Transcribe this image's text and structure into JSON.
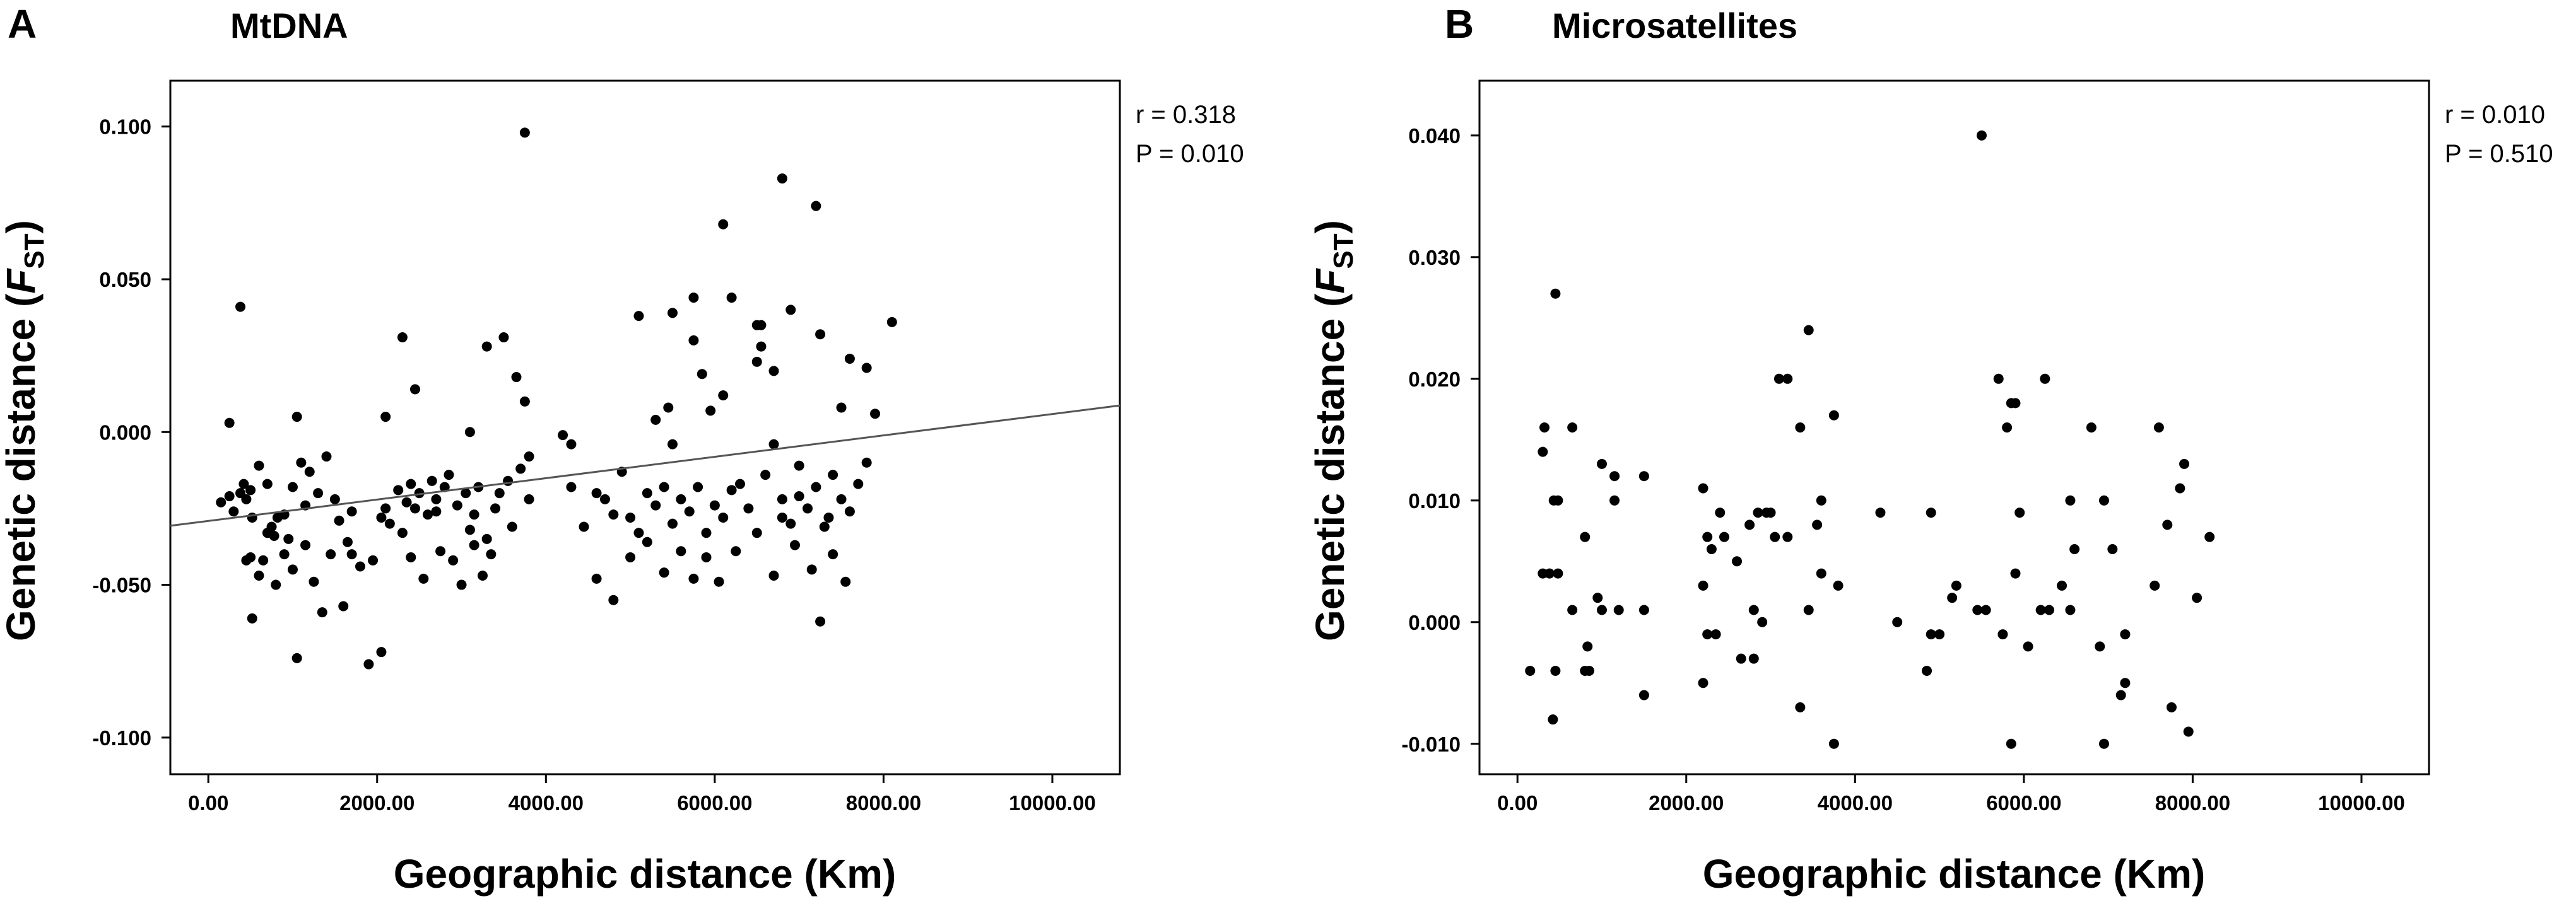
{
  "chart_data": [
    {
      "type": "scatter",
      "panel": "A",
      "title": "MtDNA",
      "xlabel": "Geographic distance (Km)",
      "ylabel_main": "Genetic distance (",
      "ylabel_var": "F",
      "ylabel_sub": "ST",
      "ylabel_close": ")",
      "stat_r": "r = 0.318",
      "stat_p": "P = 0.010",
      "xlim": [
        -450,
        10800
      ],
      "ylim": [
        -0.112,
        0.115
      ],
      "x_ticks": [
        0,
        2000,
        4000,
        6000,
        8000,
        10000
      ],
      "x_tick_labels": [
        "0.00",
        "2000.00",
        "4000.00",
        "6000.00",
        "8000.00",
        "10000.00"
      ],
      "y_ticks": [
        0.1,
        0.05,
        0.0,
        -0.05,
        -0.1
      ],
      "y_tick_labels": [
        "0.100",
        "0.050",
        "0.000",
        "-0.050",
        "-0.100"
      ],
      "regression": {
        "intercept": -0.0291,
        "slope": 3.5e-06
      },
      "points": [
        [
          380,
          0.041
        ],
        [
          3750,
          0.098
        ],
        [
          6800,
          0.083
        ],
        [
          7200,
          0.074
        ],
        [
          6100,
          0.068
        ],
        [
          2300,
          0.031
        ],
        [
          3500,
          0.031
        ],
        [
          3300,
          0.028
        ],
        [
          2450,
          0.014
        ],
        [
          3650,
          0.018
        ],
        [
          3750,
          0.01
        ],
        [
          1050,
          0.005
        ],
        [
          2100,
          0.005
        ],
        [
          250,
          0.003
        ],
        [
          3100,
          0.0
        ],
        [
          5100,
          0.038
        ],
        [
          5500,
          0.039
        ],
        [
          5750,
          0.044
        ],
        [
          6200,
          0.044
        ],
        [
          6500,
          0.035
        ],
        [
          6550,
          0.035
        ],
        [
          6900,
          0.04
        ],
        [
          7250,
          0.032
        ],
        [
          7600,
          0.024
        ],
        [
          7800,
          0.021
        ],
        [
          8100,
          0.036
        ],
        [
          5750,
          0.03
        ],
        [
          6550,
          0.028
        ],
        [
          6700,
          0.02
        ],
        [
          5850,
          0.019
        ],
        [
          5450,
          0.008
        ],
        [
          5950,
          0.007
        ],
        [
          6500,
          0.023
        ],
        [
          7500,
          0.008
        ],
        [
          7900,
          0.006
        ],
        [
          5300,
          0.004
        ],
        [
          6100,
          0.012
        ],
        [
          4200,
          -0.001
        ],
        [
          4300,
          -0.004
        ],
        [
          3800,
          -0.008
        ],
        [
          150,
          -0.023
        ],
        [
          250,
          -0.021
        ],
        [
          300,
          -0.026
        ],
        [
          380,
          -0.02
        ],
        [
          420,
          -0.017
        ],
        [
          450,
          -0.022
        ],
        [
          500,
          -0.019
        ],
        [
          520,
          -0.028
        ],
        [
          600,
          -0.011
        ],
        [
          700,
          -0.017
        ],
        [
          750,
          -0.031
        ],
        [
          780,
          -0.034
        ],
        [
          820,
          -0.028
        ],
        [
          900,
          -0.027
        ],
        [
          950,
          -0.035
        ],
        [
          1000,
          -0.018
        ],
        [
          1100,
          -0.01
        ],
        [
          1150,
          -0.024
        ],
        [
          1200,
          -0.013
        ],
        [
          1300,
          -0.02
        ],
        [
          1400,
          -0.008
        ],
        [
          1500,
          -0.022
        ],
        [
          1550,
          -0.029
        ],
        [
          1650,
          -0.036
        ],
        [
          1700,
          -0.026
        ],
        [
          450,
          -0.042
        ],
        [
          500,
          -0.041
        ],
        [
          600,
          -0.047
        ],
        [
          650,
          -0.042
        ],
        [
          700,
          -0.033
        ],
        [
          800,
          -0.05
        ],
        [
          900,
          -0.04
        ],
        [
          1000,
          -0.045
        ],
        [
          1150,
          -0.037
        ],
        [
          1250,
          -0.049
        ],
        [
          1350,
          -0.059
        ],
        [
          1450,
          -0.04
        ],
        [
          1600,
          -0.057
        ],
        [
          1700,
          -0.04
        ],
        [
          1800,
          -0.044
        ],
        [
          520,
          -0.061
        ],
        [
          1050,
          -0.074
        ],
        [
          1900,
          -0.076
        ],
        [
          2050,
          -0.072
        ],
        [
          1950,
          -0.042
        ],
        [
          2050,
          -0.028
        ],
        [
          2100,
          -0.025
        ],
        [
          2150,
          -0.03
        ],
        [
          2250,
          -0.019
        ],
        [
          2300,
          -0.033
        ],
        [
          2350,
          -0.023
        ],
        [
          2400,
          -0.017
        ],
        [
          2450,
          -0.025
        ],
        [
          2500,
          -0.02
        ],
        [
          2600,
          -0.027
        ],
        [
          2650,
          -0.016
        ],
        [
          2700,
          -0.022
        ],
        [
          2800,
          -0.018
        ],
        [
          2850,
          -0.014
        ],
        [
          2950,
          -0.024
        ],
        [
          3050,
          -0.02
        ],
        [
          3150,
          -0.027
        ],
        [
          3200,
          -0.018
        ],
        [
          3300,
          -0.035
        ],
        [
          3400,
          -0.025
        ],
        [
          3450,
          -0.02
        ],
        [
          3550,
          -0.016
        ],
        [
          3600,
          -0.031
        ],
        [
          3700,
          -0.012
        ],
        [
          3800,
          -0.022
        ],
        [
          2400,
          -0.041
        ],
        [
          2550,
          -0.048
        ],
        [
          2750,
          -0.039
        ],
        [
          2900,
          -0.042
        ],
        [
          3000,
          -0.05
        ],
        [
          3150,
          -0.037
        ],
        [
          3250,
          -0.047
        ],
        [
          3350,
          -0.04
        ],
        [
          2700,
          -0.026
        ],
        [
          3100,
          -0.032
        ],
        [
          4300,
          -0.018
        ],
        [
          4450,
          -0.031
        ],
        [
          4600,
          -0.02
        ],
        [
          4700,
          -0.022
        ],
        [
          4800,
          -0.027
        ],
        [
          4900,
          -0.013
        ],
        [
          5000,
          -0.028
        ],
        [
          5100,
          -0.033
        ],
        [
          5200,
          -0.02
        ],
        [
          5300,
          -0.024
        ],
        [
          5400,
          -0.018
        ],
        [
          5500,
          -0.03
        ],
        [
          5600,
          -0.022
        ],
        [
          5700,
          -0.026
        ],
        [
          5800,
          -0.018
        ],
        [
          5900,
          -0.033
        ],
        [
          6000,
          -0.024
        ],
        [
          6100,
          -0.028
        ],
        [
          6200,
          -0.019
        ],
        [
          6300,
          -0.017
        ],
        [
          6400,
          -0.025
        ],
        [
          6500,
          -0.033
        ],
        [
          6600,
          -0.014
        ],
        [
          6700,
          -0.004
        ],
        [
          6800,
          -0.022
        ],
        [
          6900,
          -0.03
        ],
        [
          7000,
          -0.021
        ],
        [
          7100,
          -0.025
        ],
        [
          7200,
          -0.018
        ],
        [
          7300,
          -0.031
        ],
        [
          7400,
          -0.014
        ],
        [
          7500,
          -0.022
        ],
        [
          7600,
          -0.026
        ],
        [
          7700,
          -0.017
        ],
        [
          7800,
          -0.01
        ],
        [
          4600,
          -0.048
        ],
        [
          4800,
          -0.055
        ],
        [
          5000,
          -0.041
        ],
        [
          5200,
          -0.036
        ],
        [
          5400,
          -0.046
        ],
        [
          5600,
          -0.039
        ],
        [
          5750,
          -0.048
        ],
        [
          5900,
          -0.041
        ],
        [
          6050,
          -0.049
        ],
        [
          6250,
          -0.039
        ],
        [
          6700,
          -0.047
        ],
        [
          6950,
          -0.037
        ],
        [
          7150,
          -0.045
        ],
        [
          7250,
          -0.062
        ],
        [
          7400,
          -0.04
        ],
        [
          7550,
          -0.049
        ],
        [
          7350,
          -0.028
        ],
        [
          7000,
          -0.011
        ],
        [
          6800,
          -0.028
        ],
        [
          5500,
          -0.004
        ]
      ]
    },
    {
      "type": "scatter",
      "panel": "B",
      "title": "Microsatellites",
      "xlabel": "Geographic distance (Km)",
      "ylabel_main": "Genetic distance (",
      "ylabel_var": "F",
      "ylabel_sub": "ST",
      "ylabel_close": ")",
      "stat_r": "r = 0.010",
      "stat_p": "P = 0.510",
      "xlim": [
        -450,
        10800
      ],
      "ylim": [
        -0.0125,
        0.0445
      ],
      "x_ticks": [
        0,
        2000,
        4000,
        6000,
        8000,
        10000
      ],
      "x_tick_labels": [
        "0.00",
        "2000.00",
        "4000.00",
        "6000.00",
        "8000.00",
        "10000.00"
      ],
      "y_ticks": [
        0.04,
        0.03,
        0.02,
        0.01,
        0.0,
        -0.01
      ],
      "y_tick_labels": [
        "0.040",
        "0.030",
        "0.020",
        "0.010",
        "0.000",
        "-0.010"
      ],
      "points": [
        [
          5500,
          0.04
        ],
        [
          450,
          0.027
        ],
        [
          3450,
          0.024
        ],
        [
          3100,
          0.02
        ],
        [
          3200,
          0.02
        ],
        [
          5700,
          0.02
        ],
        [
          6250,
          0.02
        ],
        [
          320,
          0.016
        ],
        [
          650,
          0.016
        ],
        [
          3350,
          0.016
        ],
        [
          5800,
          0.016
        ],
        [
          6800,
          0.016
        ],
        [
          7600,
          0.016
        ],
        [
          3750,
          0.017
        ],
        [
          300,
          0.014
        ],
        [
          5850,
          0.018
        ],
        [
          5900,
          0.018
        ],
        [
          1000,
          0.013
        ],
        [
          1150,
          0.012
        ],
        [
          1500,
          0.012
        ],
        [
          2200,
          0.011
        ],
        [
          7900,
          0.013
        ],
        [
          7850,
          0.011
        ],
        [
          430,
          0.01
        ],
        [
          480,
          0.01
        ],
        [
          2400,
          0.009
        ],
        [
          3600,
          0.01
        ],
        [
          4300,
          0.009
        ],
        [
          4900,
          0.009
        ],
        [
          5950,
          0.009
        ],
        [
          6550,
          0.01
        ],
        [
          6950,
          0.01
        ],
        [
          7700,
          0.008
        ],
        [
          8200,
          0.007
        ],
        [
          2850,
          0.009
        ],
        [
          2950,
          0.009
        ],
        [
          3000,
          0.009
        ],
        [
          300,
          0.004
        ],
        [
          380,
          0.004
        ],
        [
          480,
          0.004
        ],
        [
          800,
          0.007
        ],
        [
          1150,
          0.01
        ],
        [
          2250,
          0.007
        ],
        [
          2300,
          0.006
        ],
        [
          2450,
          0.007
        ],
        [
          2600,
          0.005
        ],
        [
          2750,
          0.008
        ],
        [
          3050,
          0.007
        ],
        [
          3200,
          0.007
        ],
        [
          3550,
          0.008
        ],
        [
          3600,
          0.004
        ],
        [
          3800,
          0.003
        ],
        [
          5200,
          0.003
        ],
        [
          5900,
          0.004
        ],
        [
          6450,
          0.003
        ],
        [
          6600,
          0.006
        ],
        [
          7050,
          0.006
        ],
        [
          7550,
          0.003
        ],
        [
          5150,
          0.002
        ],
        [
          950,
          0.002
        ],
        [
          1000,
          0.001
        ],
        [
          1200,
          0.001
        ],
        [
          1500,
          0.001
        ],
        [
          2200,
          0.003
        ],
        [
          2800,
          0.001
        ],
        [
          3450,
          0.001
        ],
        [
          5450,
          0.001
        ],
        [
          5550,
          0.001
        ],
        [
          6300,
          0.001
        ],
        [
          6550,
          0.001
        ],
        [
          8050,
          0.002
        ],
        [
          650,
          0.001
        ],
        [
          2900,
          0.0
        ],
        [
          4500,
          0.0
        ],
        [
          6200,
          0.001
        ],
        [
          150,
          -0.004
        ],
        [
          450,
          -0.004
        ],
        [
          800,
          -0.004
        ],
        [
          850,
          -0.004
        ],
        [
          1500,
          -0.006
        ],
        [
          2200,
          -0.005
        ],
        [
          2250,
          -0.001
        ],
        [
          2350,
          -0.001
        ],
        [
          2650,
          -0.003
        ],
        [
          2800,
          -0.003
        ],
        [
          4900,
          -0.001
        ],
        [
          5000,
          -0.001
        ],
        [
          5750,
          -0.001
        ],
        [
          6050,
          -0.002
        ],
        [
          6900,
          -0.002
        ],
        [
          7200,
          -0.001
        ],
        [
          4850,
          -0.004
        ],
        [
          420,
          -0.008
        ],
        [
          3350,
          -0.007
        ],
        [
          7750,
          -0.007
        ],
        [
          3750,
          -0.01
        ],
        [
          5850,
          -0.01
        ],
        [
          6950,
          -0.01
        ],
        [
          7950,
          -0.009
        ],
        [
          7200,
          -0.005
        ],
        [
          7150,
          -0.006
        ],
        [
          830,
          -0.002
        ]
      ]
    }
  ]
}
